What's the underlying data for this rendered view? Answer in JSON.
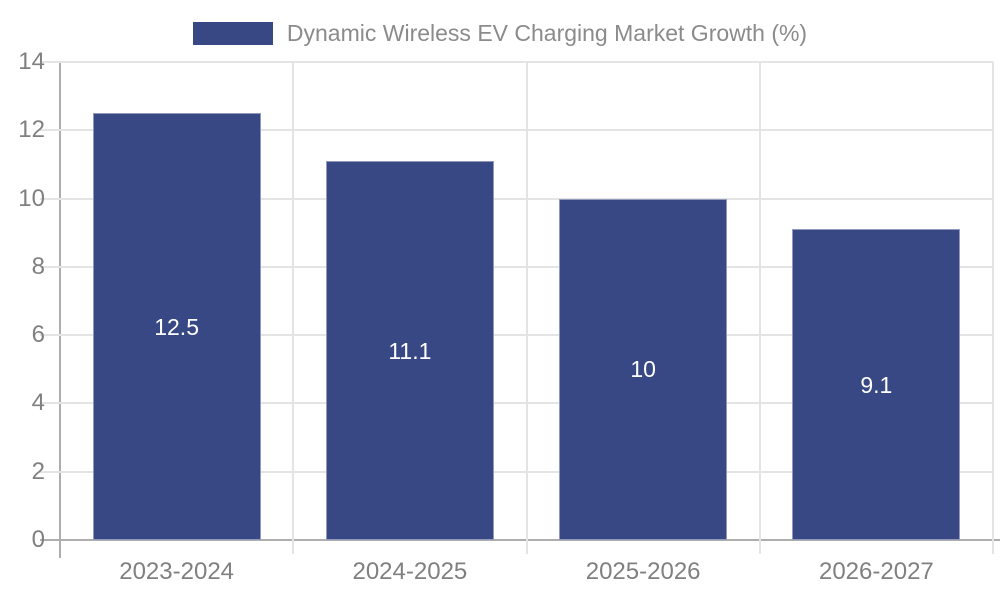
{
  "legend": {
    "label": "Dynamic Wireless EV Charging Market Growth (%)",
    "swatch_icon": "legend-swatch"
  },
  "chart_data": {
    "type": "bar",
    "title": "Dynamic Wireless EV Charging Market Growth (%)",
    "categories": [
      "2023-2024",
      "2024-2025",
      "2025-2026",
      "2026-2027"
    ],
    "values": [
      12.5,
      11.1,
      10,
      9.1
    ],
    "bar_labels": [
      "12.5",
      "11.1",
      "10",
      "9.1"
    ],
    "xlabel": "",
    "ylabel": "",
    "ylim": [
      0,
      14
    ],
    "yticks": [
      0,
      2,
      4,
      6,
      8,
      10,
      12,
      14
    ],
    "grid": true,
    "legend_position": "top-center"
  },
  "colors": {
    "bar": "#374884",
    "grid": "#e4e4e4",
    "axis": "#aeaeae",
    "tick_label": "#808080",
    "legend_text": "#8b8b8b",
    "bar_label": "#ffffff",
    "background": "#ffffff"
  }
}
